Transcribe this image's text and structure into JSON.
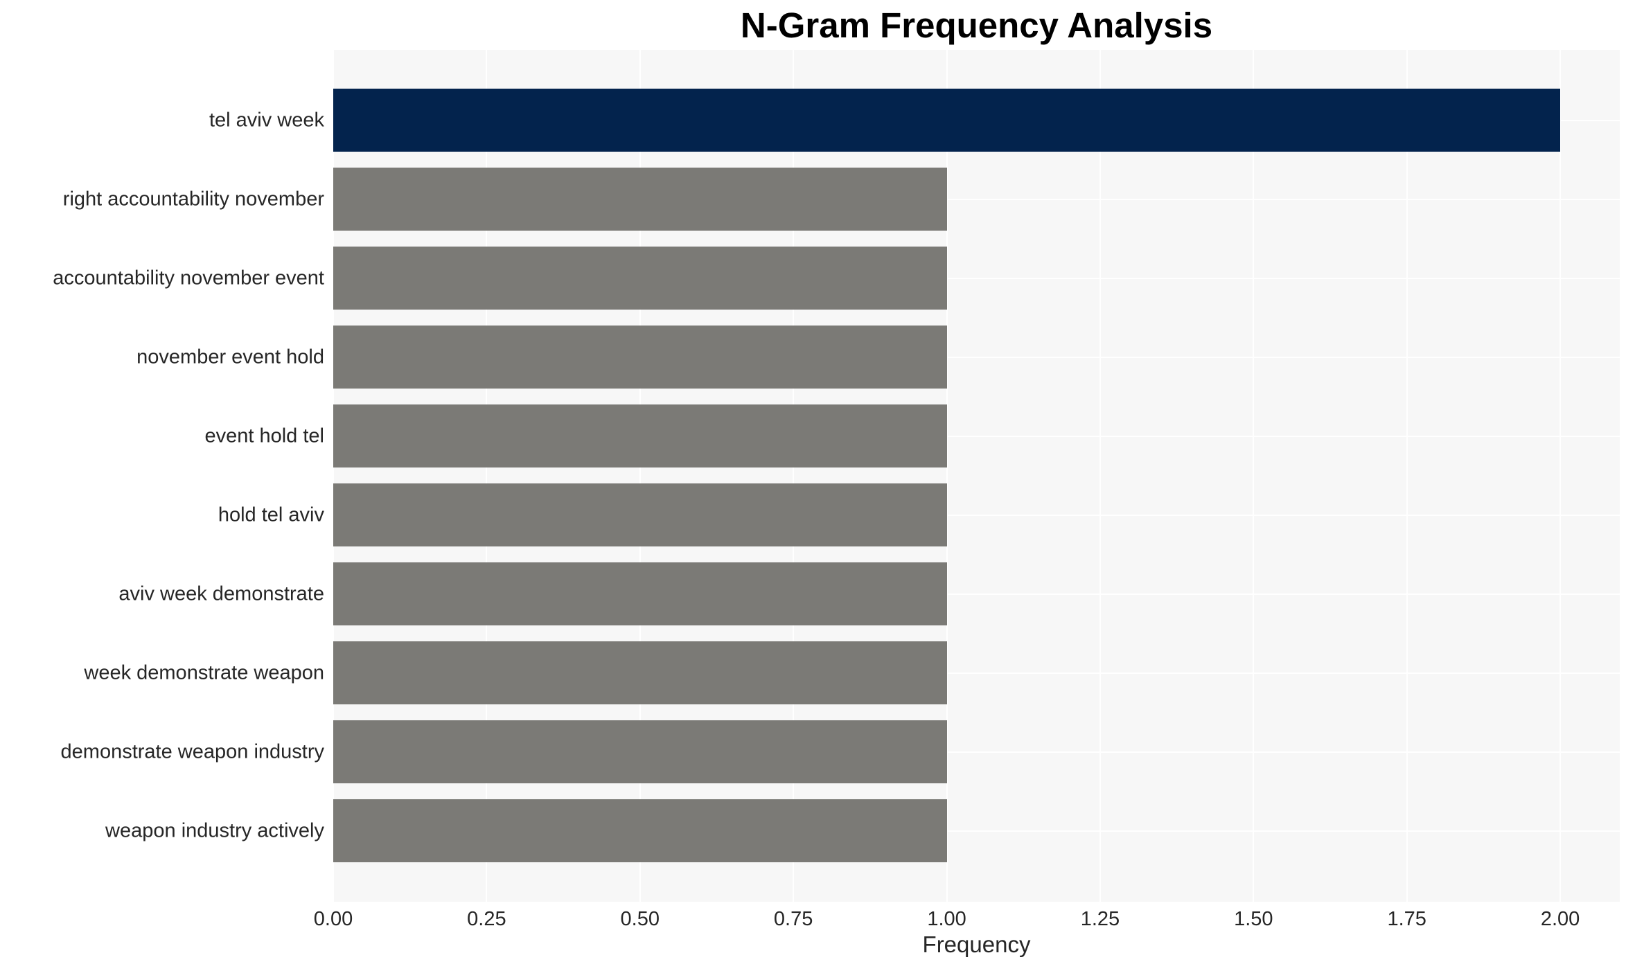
{
  "chart_data": {
    "type": "bar",
    "orientation": "horizontal",
    "title": "N-Gram Frequency Analysis",
    "xlabel": "Frequency",
    "ylabel": "",
    "categories": [
      "tel aviv week",
      "right accountability november",
      "accountability november event",
      "november event hold",
      "event hold tel",
      "hold tel aviv",
      "aviv week demonstrate",
      "week demonstrate weapon",
      "demonstrate weapon industry",
      "weapon industry actively"
    ],
    "values": [
      2,
      1,
      1,
      1,
      1,
      1,
      1,
      1,
      1,
      1
    ],
    "bar_colors": [
      "#03234d",
      "#7b7a76",
      "#7b7a76",
      "#7b7a76",
      "#7b7a76",
      "#7b7a76",
      "#7b7a76",
      "#7b7a76",
      "#7b7a76",
      "#7b7a76"
    ],
    "xlim": [
      0,
      2.097
    ],
    "xticks": [
      0,
      0.25,
      0.5,
      0.75,
      1.0,
      1.25,
      1.5,
      1.75,
      2.0
    ],
    "xtick_labels": [
      "0.00",
      "0.25",
      "0.50",
      "0.75",
      "1.00",
      "1.25",
      "1.50",
      "1.75",
      "2.00"
    ],
    "grid": true,
    "legend": false,
    "colors": {
      "highlight_bar": "#03234d",
      "default_bar": "#7b7a76",
      "plot_background": "#f7f7f7",
      "grid_line": "#ffffff",
      "tick_text": "#262626",
      "title_text": "#000000"
    }
  }
}
